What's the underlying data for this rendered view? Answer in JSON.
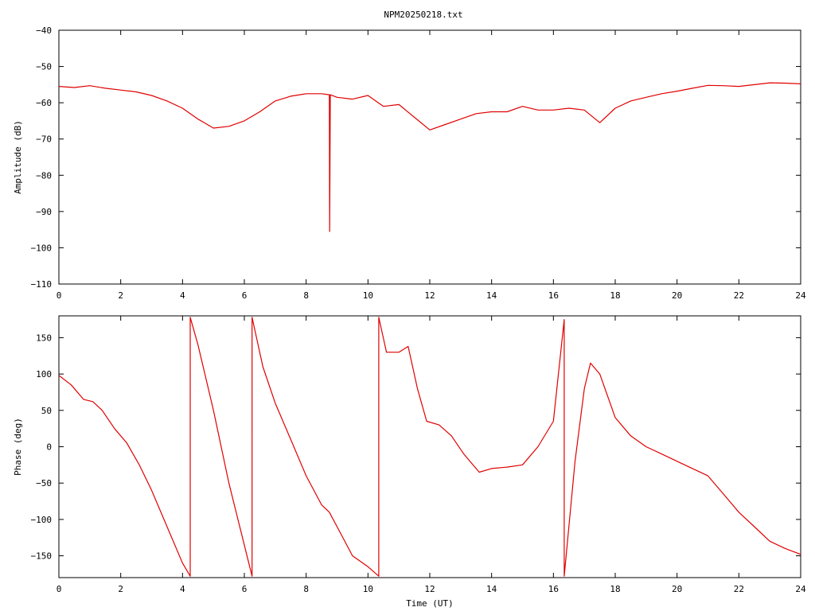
{
  "page": {
    "title": "NPM20250218.txt"
  },
  "colors": {
    "series": "#e00000",
    "axis": "#000000",
    "background": "#ffffff"
  },
  "chart_data": [
    {
      "type": "line",
      "title": "NPM20250218.txt",
      "xlabel": "",
      "ylabel": "Amplitude (dB)",
      "xlim": [
        0,
        24
      ],
      "ylim": [
        -110,
        -40
      ],
      "xticks": [
        0,
        2,
        4,
        6,
        8,
        10,
        12,
        14,
        16,
        18,
        20,
        22,
        24
      ],
      "yticks": [
        -110,
        -100,
        -90,
        -80,
        -70,
        -60,
        -50,
        -40
      ],
      "grid": false,
      "series": [
        {
          "name": "",
          "x": [
            0,
            0.5,
            1,
            1.5,
            2,
            2.5,
            3,
            3.5,
            4,
            4.5,
            5,
            5.5,
            6,
            6.5,
            7,
            7.5,
            8,
            8.5,
            8.75,
            8.76,
            8.78,
            9,
            9.5,
            10,
            10.5,
            11,
            11.5,
            12,
            12.5,
            13,
            13.5,
            14,
            14.5,
            15,
            15.5,
            16,
            16.5,
            17,
            17.5,
            18,
            18.5,
            19,
            19.5,
            20,
            20.5,
            21,
            21.5,
            22,
            22.5,
            23,
            23.5,
            24
          ],
          "y": [
            -55.5,
            -55.8,
            -55.3,
            -56,
            -56.5,
            -57,
            -58,
            -59.5,
            -61.5,
            -64.5,
            -67,
            -66.5,
            -65,
            -62.5,
            -59.5,
            -58.2,
            -57.5,
            -57.5,
            -57.8,
            -95.5,
            -57.8,
            -58.5,
            -59,
            -58,
            -61,
            -60.5,
            -64,
            -67.5,
            -66,
            -64.5,
            -63,
            -62.5,
            -62.5,
            -61,
            -62,
            -62,
            -61.5,
            -62,
            -65.5,
            -61.5,
            -59.5,
            -58.5,
            -57.5,
            -56.8,
            -56,
            -55.2,
            -55.3,
            -55.5,
            -55,
            -54.5,
            -54.6,
            -54.8
          ]
        }
      ]
    },
    {
      "type": "line",
      "title": "",
      "xlabel": "Time (UT)",
      "ylabel": "Phase (deg)",
      "xlim": [
        0,
        24
      ],
      "ylim": [
        -180,
        180
      ],
      "xticks": [
        0,
        2,
        4,
        6,
        8,
        10,
        12,
        14,
        16,
        18,
        20,
        22,
        24
      ],
      "yticks": [
        -150,
        -100,
        -50,
        0,
        50,
        100,
        150
      ],
      "grid": false,
      "series": [
        {
          "name": "",
          "x": [
            0,
            0.4,
            0.8,
            1.1,
            1.4,
            1.8,
            2.2,
            2.6,
            3,
            3.5,
            4,
            4.25,
            4.25,
            4.5,
            5,
            5.5,
            6.25,
            6.25,
            6.6,
            7,
            7.5,
            8,
            8.5,
            8.75,
            9,
            9.5,
            10,
            10.35,
            10.35,
            10.6,
            11,
            11.3,
            11.6,
            11.9,
            12.3,
            12.7,
            13.1,
            13.6,
            14,
            14.5,
            15,
            15.5,
            16,
            16.35,
            16.35,
            16.7,
            17,
            17.2,
            17.5,
            18,
            18.5,
            19,
            19.5,
            20,
            20.5,
            21,
            21.5,
            22,
            22.5,
            23,
            23.5,
            24
          ],
          "y": [
            98,
            85,
            65,
            62,
            50,
            25,
            5,
            -25,
            -60,
            -110,
            -160,
            -178,
            178,
            140,
            50,
            -50,
            -178,
            178,
            110,
            60,
            10,
            -40,
            -80,
            -90,
            -110,
            -150,
            -165,
            -178,
            178,
            130,
            130,
            138,
            80,
            35,
            30,
            15,
            -10,
            -35,
            -30,
            -28,
            -25,
            0,
            35,
            175,
            -178,
            -20,
            80,
            115,
            100,
            40,
            15,
            0,
            -10,
            -20,
            -30,
            -40,
            -65,
            -90,
            -110,
            -130,
            -140,
            -148
          ]
        }
      ]
    }
  ]
}
